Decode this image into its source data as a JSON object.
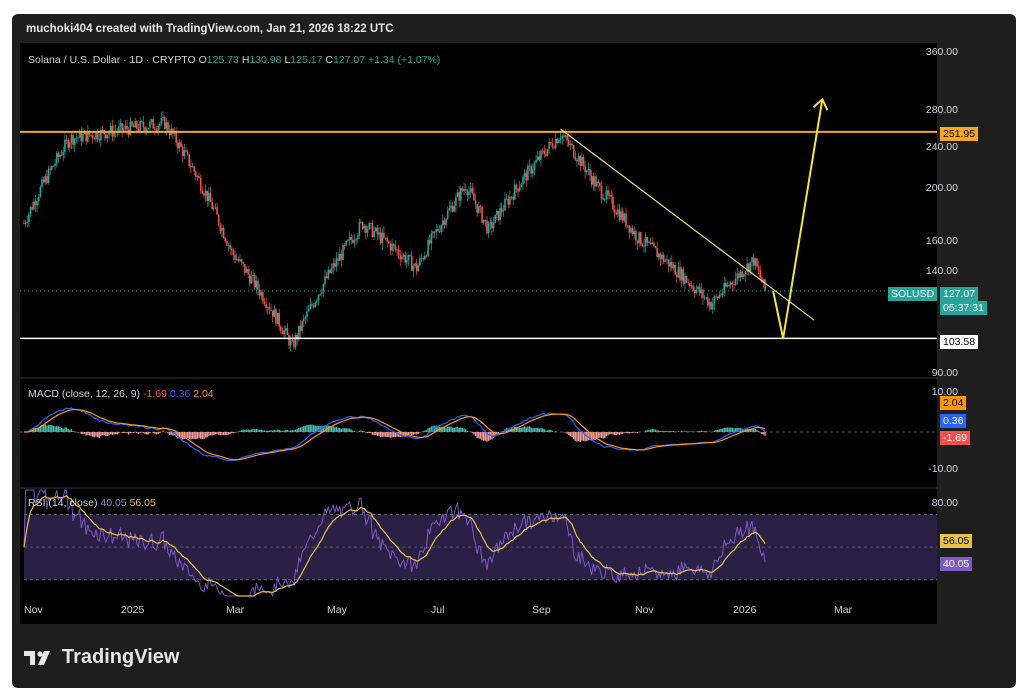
{
  "header": {
    "attribution": "muchoki404 created with TradingView.com, Jan 21, 2026 18:22 UTC"
  },
  "legend": {
    "title": "Solana / U.S. Dollar · 1D · CRYPTO",
    "o_label": "O",
    "o_value": "125.73",
    "h_label": "H",
    "h_value": "130.98",
    "l_label": "L",
    "l_value": "125.17",
    "c_label": "C",
    "c_value": "127.07",
    "change": "+1.34 (+1.07%)"
  },
  "price_axis": {
    "ticks": [
      "360.00",
      "280.00",
      "240.00",
      "200.00",
      "160.00",
      "140.00",
      "90.00"
    ]
  },
  "price_tags": {
    "resistance": "251.95",
    "symbol": "SOLUSD",
    "last": "127.07",
    "countdown": "05:37:31",
    "support": "103.58"
  },
  "macd": {
    "label": "MACD (close, 12, 26, 9)",
    "hist": "-1.69",
    "macd": "0.36",
    "signal": "2.04",
    "ticks": [
      "10.00",
      "-10.00"
    ]
  },
  "rsi": {
    "label": "RSI (14, close)",
    "rsi": "40.05",
    "ma": "56.05",
    "ticks": [
      "80.00"
    ]
  },
  "time_axis": [
    "Nov",
    "2025",
    "Mar",
    "May",
    "Jul",
    "Sep",
    "Nov",
    "2026",
    "Mar"
  ],
  "brand": "TradingView",
  "colors": {
    "up": "#26a69a",
    "down": "#ef5350",
    "resistance": "#f5a623",
    "trend": "#e6e27a",
    "arrow": "#f2e24b",
    "macd": "#2962ff",
    "signal": "#ff9800",
    "rsi": "#7e57c2",
    "rsi_ma": "#e6c24a"
  },
  "chart_data": [
    {
      "type": "candlestick",
      "title": "Solana / U.S. Dollar · 1D · CRYPTO",
      "ylim": [
        90,
        360
      ],
      "x": [
        "2024-10-25",
        "2024-11-22",
        "2025-01-19",
        "2025-03-01",
        "2025-04-07",
        "2025-05-20",
        "2025-06-22",
        "2025-07-22",
        "2025-08-05",
        "2025-09-18",
        "2025-10-10",
        "2025-11-04",
        "2025-12-19",
        "2026-01-14",
        "2026-01-21"
      ],
      "close_approx": [
        170,
        245,
        262,
        150,
        100,
        170,
        140,
        200,
        165,
        250,
        200,
        160,
        120,
        145,
        127.07
      ],
      "levels": {
        "resistance": 251.95,
        "support": 103.58
      },
      "last_close": 127.07,
      "projection": {
        "dip_to": 103.58,
        "then_to": 290
      }
    },
    {
      "type": "line",
      "title": "MACD (close, 12, 26, 9)",
      "series": [
        {
          "name": "MACD",
          "last": 0.36
        },
        {
          "name": "Signal",
          "last": 2.04
        },
        {
          "name": "Histogram",
          "last": -1.69
        }
      ]
    },
    {
      "type": "line",
      "title": "RSI (14, close)",
      "series": [
        {
          "name": "RSI",
          "last": 40.05
        },
        {
          "name": "RSI MA",
          "last": 56.05
        }
      ]
    }
  ]
}
